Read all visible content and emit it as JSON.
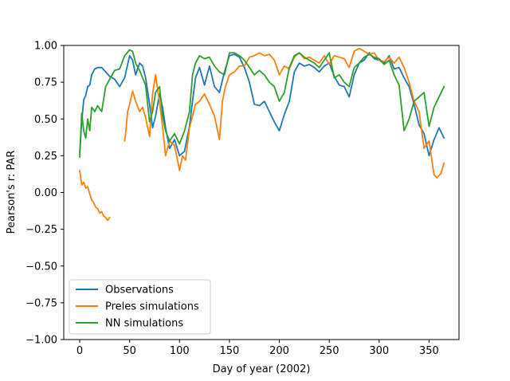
{
  "chart_data": {
    "type": "line",
    "title": "",
    "xlabel": "Day of year (2002)",
    "ylabel": "Pearson's r: PAR",
    "xlim": [
      -16,
      380
    ],
    "ylim": [
      -1.0,
      1.0
    ],
    "xticks": [
      0,
      50,
      100,
      150,
      200,
      250,
      300,
      350
    ],
    "yticks": [
      -1.0,
      -0.75,
      -0.5,
      -0.25,
      0.0,
      0.25,
      0.5,
      0.75,
      1.0
    ],
    "ytick_labels": [
      "−1.00",
      "−0.75",
      "−0.50",
      "−0.25",
      "0.00",
      "0.25",
      "0.50",
      "0.75",
      "1.00"
    ],
    "grid": false,
    "legend_position": "lower-left",
    "series": [
      {
        "name": "Observations",
        "color": "#1f77b4",
        "x": [
          0,
          2,
          4,
          6,
          8,
          10,
          12,
          15,
          18,
          22,
          26,
          30,
          35,
          40,
          45,
          50,
          53,
          56,
          60,
          63,
          66,
          70,
          73,
          76,
          80,
          83,
          86,
          90,
          95,
          100,
          105,
          110,
          113,
          116,
          120,
          125,
          130,
          135,
          140,
          145,
          150,
          155,
          160,
          165,
          170,
          175,
          180,
          185,
          190,
          195,
          200,
          205,
          210,
          215,
          220,
          225,
          230,
          235,
          240,
          245,
          250,
          255,
          260,
          265,
          270,
          275,
          280,
          285,
          290,
          295,
          300,
          305,
          310,
          315,
          320,
          325,
          330,
          335,
          340,
          345,
          350,
          355,
          360,
          365
        ],
        "y": [
          0.27,
          0.48,
          0.63,
          0.66,
          0.72,
          0.73,
          0.8,
          0.84,
          0.85,
          0.85,
          0.82,
          0.79,
          0.77,
          0.72,
          0.78,
          0.93,
          0.9,
          0.8,
          0.88,
          0.86,
          0.78,
          0.6,
          0.44,
          0.52,
          0.67,
          0.58,
          0.44,
          0.3,
          0.36,
          0.25,
          0.28,
          0.45,
          0.62,
          0.78,
          0.85,
          0.73,
          0.86,
          0.72,
          0.68,
          0.82,
          0.93,
          0.94,
          0.92,
          0.85,
          0.75,
          0.6,
          0.59,
          0.62,
          0.55,
          0.48,
          0.42,
          0.53,
          0.62,
          0.82,
          0.88,
          0.86,
          0.87,
          0.85,
          0.82,
          0.86,
          0.88,
          0.79,
          0.73,
          0.72,
          0.65,
          0.8,
          0.88,
          0.9,
          0.95,
          0.91,
          0.9,
          0.88,
          0.93,
          0.84,
          0.85,
          0.78,
          0.72,
          0.6,
          0.46,
          0.4,
          0.25,
          0.36,
          0.44,
          0.37
        ]
      },
      {
        "name": "Preles simulations",
        "color": "#ff7f0e",
        "x": [
          0,
          2,
          4,
          6,
          8,
          10,
          12,
          14,
          16,
          18,
          20,
          22,
          24,
          26,
          28,
          30,
          null,
          45,
          46,
          48,
          50,
          53,
          56,
          60,
          63,
          66,
          70,
          73,
          76,
          80,
          83,
          86,
          90,
          95,
          100,
          103,
          106,
          110,
          113,
          116,
          120,
          125,
          130,
          135,
          140,
          143,
          146,
          150,
          155,
          160,
          165,
          170,
          175,
          180,
          185,
          190,
          195,
          200,
          205,
          210,
          215,
          220,
          225,
          230,
          235,
          240,
          245,
          250,
          255,
          260,
          265,
          270,
          275,
          280,
          285,
          290,
          295,
          300,
          305,
          310,
          315,
          320,
          325,
          330,
          335,
          340,
          345,
          350,
          355,
          358,
          362,
          365
        ],
        "y": [
          0.15,
          0.05,
          0.07,
          0.03,
          0.04,
          -0.01,
          -0.05,
          -0.07,
          -0.1,
          -0.11,
          -0.14,
          -0.13,
          -0.16,
          -0.17,
          -0.19,
          -0.17,
          null,
          0.35,
          0.4,
          0.55,
          0.6,
          0.69,
          0.62,
          0.55,
          0.58,
          0.51,
          0.38,
          0.67,
          0.8,
          0.61,
          0.45,
          0.25,
          0.35,
          0.32,
          0.15,
          0.25,
          0.22,
          0.44,
          0.52,
          0.6,
          0.62,
          0.67,
          0.6,
          0.52,
          0.36,
          0.62,
          0.72,
          0.8,
          0.82,
          0.86,
          0.86,
          0.92,
          0.93,
          0.95,
          0.93,
          0.94,
          0.9,
          0.8,
          0.86,
          0.84,
          0.92,
          0.95,
          0.91,
          0.92,
          0.9,
          0.88,
          0.93,
          0.87,
          0.93,
          0.92,
          0.91,
          0.85,
          0.96,
          0.98,
          0.96,
          0.94,
          0.95,
          0.9,
          0.89,
          0.92,
          0.88,
          0.92,
          0.85,
          0.75,
          0.62,
          0.55,
          0.3,
          0.35,
          0.12,
          0.1,
          0.13,
          0.2
        ]
      },
      {
        "name": "NN simulations",
        "color": "#2ca02c",
        "x": [
          0,
          2,
          4,
          6,
          8,
          10,
          12,
          15,
          18,
          22,
          26,
          30,
          35,
          40,
          45,
          50,
          53,
          56,
          60,
          63,
          66,
          70,
          73,
          76,
          80,
          83,
          86,
          90,
          95,
          100,
          105,
          110,
          113,
          116,
          120,
          125,
          130,
          135,
          140,
          145,
          150,
          155,
          160,
          165,
          170,
          175,
          180,
          185,
          190,
          195,
          200,
          205,
          210,
          215,
          220,
          225,
          230,
          235,
          240,
          245,
          250,
          255,
          260,
          265,
          270,
          275,
          280,
          285,
          290,
          295,
          300,
          305,
          310,
          315,
          320,
          325,
          330,
          335,
          340,
          345,
          350,
          355,
          360,
          365
        ],
        "y": [
          0.24,
          0.54,
          0.42,
          0.37,
          0.5,
          0.42,
          0.58,
          0.55,
          0.59,
          0.55,
          0.72,
          0.77,
          0.83,
          0.84,
          0.93,
          0.97,
          0.96,
          0.88,
          0.83,
          0.78,
          0.73,
          0.48,
          0.55,
          0.68,
          0.72,
          0.52,
          0.42,
          0.35,
          0.4,
          0.33,
          0.42,
          0.55,
          0.8,
          0.88,
          0.93,
          0.91,
          0.92,
          0.86,
          0.82,
          0.8,
          0.95,
          0.95,
          0.93,
          0.9,
          0.85,
          0.8,
          0.83,
          0.8,
          0.75,
          0.72,
          0.62,
          0.68,
          0.85,
          0.93,
          0.95,
          0.92,
          0.9,
          0.88,
          0.85,
          0.9,
          0.95,
          0.78,
          0.8,
          0.75,
          0.72,
          0.85,
          0.88,
          0.92,
          0.94,
          0.92,
          0.91,
          0.87,
          0.9,
          0.8,
          0.73,
          0.42,
          0.5,
          0.62,
          0.65,
          0.68,
          0.45,
          0.58,
          0.65,
          0.72
        ]
      }
    ]
  }
}
